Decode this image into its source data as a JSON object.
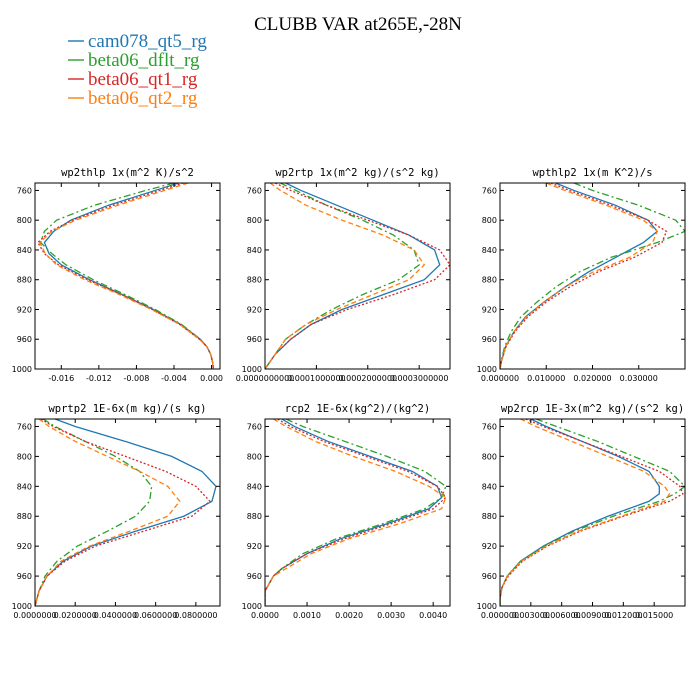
{
  "figure": {
    "title": "CLUBB VAR at265E,-28N"
  },
  "legend": [
    {
      "label": "cam078_qt5_rg",
      "color": "#1f77b4",
      "dash": "solid"
    },
    {
      "label": "beta06_dflt_rg",
      "color": "#2ca02c",
      "dash": "dashdot"
    },
    {
      "label": "beta06_qt1_rg",
      "color": "#d62728",
      "dash": "dotted"
    },
    {
      "label": "beta06_qt2_rg",
      "color": "#ff7f0e",
      "dash": "dashed"
    }
  ],
  "chart_data": [
    {
      "type": "line",
      "title": "wp2thlp  1x(m^2 K)/s^2",
      "ylim": [
        1000,
        750
      ],
      "yticks": [
        760,
        800,
        840,
        880,
        920,
        960,
        1000
      ],
      "xlim": [
        -0.0188,
        0.0009
      ],
      "xticks": [
        -0.016,
        -0.012,
        -0.008,
        -0.004,
        0.0
      ],
      "xticklabels": [
        "-0.016",
        "-0.012",
        "-0.008",
        "-0.004",
        "0.000"
      ],
      "y": [
        750,
        760,
        780,
        800,
        815,
        830,
        845,
        860,
        880,
        900,
        920,
        940,
        960,
        970,
        980,
        990,
        1000
      ],
      "series": [
        {
          "name": "cam078_qt5_rg",
          "values": [
            -0.0035,
            -0.006,
            -0.011,
            -0.015,
            -0.0168,
            -0.0178,
            -0.0173,
            -0.016,
            -0.013,
            -0.0095,
            -0.0062,
            -0.0033,
            -0.0012,
            -0.0005,
            -0.0001,
            0.0001,
            0.0002
          ]
        },
        {
          "name": "beta06_dflt_rg",
          "values": [
            -0.004,
            -0.007,
            -0.0125,
            -0.0165,
            -0.0178,
            -0.0182,
            -0.017,
            -0.0155,
            -0.0126,
            -0.0092,
            -0.006,
            -0.0032,
            -0.0012,
            -0.0005,
            -0.0001,
            0.0001,
            0.0002
          ]
        },
        {
          "name": "beta06_qt1_rg",
          "values": [
            -0.003,
            -0.0055,
            -0.0105,
            -0.0148,
            -0.0172,
            -0.0185,
            -0.0178,
            -0.0163,
            -0.0132,
            -0.0096,
            -0.0063,
            -0.0034,
            -0.0013,
            -0.0005,
            -0.0001,
            0.0001,
            0.0002
          ]
        },
        {
          "name": "beta06_qt2_rg",
          "values": [
            -0.0025,
            -0.005,
            -0.01,
            -0.0145,
            -0.017,
            -0.0183,
            -0.0177,
            -0.0165,
            -0.0135,
            -0.0098,
            -0.0064,
            -0.0034,
            -0.0013,
            -0.0005,
            -0.0001,
            0.0001,
            0.0002
          ]
        }
      ]
    },
    {
      "type": "line",
      "title": "wp2rtp  1x(m^2 kg)/(s^2 kg)",
      "ylim": [
        1000,
        750
      ],
      "yticks": [
        760,
        800,
        840,
        880,
        920,
        960,
        1000
      ],
      "xlim": [
        0.0,
        0.00036
      ],
      "xticks": [
        0.0,
        0.0001,
        0.0002,
        0.0003
      ],
      "xticklabels": [
        "0.0000000000",
        "0.0001000000",
        "0.0002000000",
        "0.0003000000"
      ],
      "y": [
        750,
        760,
        780,
        800,
        820,
        840,
        860,
        880,
        900,
        920,
        940,
        960,
        980,
        1000
      ],
      "series": [
        {
          "name": "cam078_qt5_rg",
          "values": [
            4e-05,
            7e-05,
            0.00014,
            0.00021,
            0.00028,
            0.00033,
            0.00034,
            0.00031,
            0.00023,
            0.00015,
            9e-05,
            5e-05,
            2e-05,
            0.0
          ]
        },
        {
          "name": "beta06_dflt_rg",
          "values": [
            3e-05,
            6e-05,
            0.00012,
            0.00019,
            0.00025,
            0.00029,
            0.0003,
            0.00026,
            0.00019,
            0.00013,
            8e-05,
            4e-05,
            2e-05,
            0.0
          ]
        },
        {
          "name": "beta06_qt1_rg",
          "values": [
            2e-05,
            5e-05,
            0.00012,
            0.0002,
            0.00028,
            0.00034,
            0.00036,
            0.00033,
            0.00025,
            0.00016,
            9e-05,
            5e-05,
            2e-05,
            0.0
          ]
        },
        {
          "name": "beta06_qt2_rg",
          "values": [
            1e-05,
            3e-05,
            8e-05,
            0.00015,
            0.00023,
            0.00029,
            0.00031,
            0.00028,
            0.00021,
            0.00014,
            8e-05,
            4e-05,
            2e-05,
            0.0
          ]
        }
      ]
    },
    {
      "type": "line",
      "title": "wpthlp2  1x(m K^2)/s",
      "ylim": [
        1000,
        750
      ],
      "yticks": [
        760,
        800,
        840,
        880,
        920,
        960,
        1000
      ],
      "xlim": [
        0.0,
        0.04
      ],
      "xticks": [
        0.0,
        0.01,
        0.02,
        0.03
      ],
      "xticklabels": [
        "0.000000",
        "0.010000",
        "0.020000",
        "0.030000"
      ],
      "y": [
        750,
        760,
        780,
        800,
        815,
        830,
        850,
        870,
        890,
        910,
        930,
        950,
        970,
        990,
        1000
      ],
      "series": [
        {
          "name": "cam078_qt5_rg",
          "values": [
            0.012,
            0.016,
            0.025,
            0.032,
            0.034,
            0.031,
            0.025,
            0.019,
            0.014,
            0.0095,
            0.0055,
            0.003,
            0.0012,
            0.0003,
            0.0
          ]
        },
        {
          "name": "beta06_dflt_rg",
          "values": [
            0.016,
            0.02,
            0.03,
            0.038,
            0.04,
            0.034,
            0.024,
            0.017,
            0.012,
            0.008,
            0.0045,
            0.0024,
            0.001,
            0.0002,
            0.0
          ]
        },
        {
          "name": "beta06_qt1_rg",
          "values": [
            0.011,
            0.015,
            0.024,
            0.032,
            0.036,
            0.035,
            0.029,
            0.021,
            0.015,
            0.01,
            0.006,
            0.0032,
            0.0013,
            0.0003,
            0.0
          ]
        },
        {
          "name": "beta06_qt2_rg",
          "values": [
            0.01,
            0.014,
            0.023,
            0.031,
            0.034,
            0.033,
            0.028,
            0.02,
            0.014,
            0.0095,
            0.0057,
            0.003,
            0.0012,
            0.0003,
            0.0
          ]
        }
      ]
    },
    {
      "type": "line",
      "title": "wprtp2  1E-6x(m kg)/(s kg)",
      "ylim": [
        1000,
        750
      ],
      "yticks": [
        760,
        800,
        840,
        880,
        920,
        960,
        1000
      ],
      "xlim": [
        0.0,
        0.092
      ],
      "xticks": [
        0.0,
        0.02,
        0.04,
        0.06,
        0.08
      ],
      "xticklabels": [
        "0.0000000",
        "0.0200000",
        "0.0400000",
        "0.0600000",
        "0.0800000"
      ],
      "y": [
        750,
        760,
        780,
        800,
        820,
        840,
        860,
        880,
        900,
        920,
        940,
        960,
        980,
        1000
      ],
      "series": [
        {
          "name": "cam078_qt5_rg",
          "values": [
            0.01,
            0.02,
            0.045,
            0.068,
            0.083,
            0.09,
            0.088,
            0.074,
            0.05,
            0.028,
            0.014,
            0.006,
            0.002,
            0.0
          ]
        },
        {
          "name": "beta06_dflt_rg",
          "values": [
            0.004,
            0.01,
            0.025,
            0.04,
            0.052,
            0.058,
            0.057,
            0.05,
            0.036,
            0.021,
            0.011,
            0.005,
            0.002,
            0.0
          ]
        },
        {
          "name": "beta06_qt1_rg",
          "values": [
            0.003,
            0.009,
            0.025,
            0.045,
            0.065,
            0.08,
            0.087,
            0.078,
            0.054,
            0.03,
            0.015,
            0.006,
            0.002,
            0.0
          ]
        },
        {
          "name": "beta06_qt2_rg",
          "values": [
            0.002,
            0.007,
            0.02,
            0.036,
            0.052,
            0.066,
            0.072,
            0.066,
            0.047,
            0.027,
            0.013,
            0.006,
            0.002,
            0.0
          ]
        }
      ]
    },
    {
      "type": "line",
      "title": "rcp2  1E-6x(kg^2)/(kg^2)",
      "ylim": [
        1000,
        750
      ],
      "yticks": [
        760,
        800,
        840,
        880,
        920,
        960,
        1000
      ],
      "xlim": [
        0.0,
        0.0044
      ],
      "xticks": [
        0.0,
        0.001,
        0.002,
        0.003,
        0.004
      ],
      "xticklabels": [
        "0.0000",
        "0.0010",
        "0.0020",
        "0.0030",
        "0.0040"
      ],
      "y": [
        750,
        760,
        780,
        800,
        820,
        840,
        855,
        870,
        890,
        910,
        930,
        950,
        960,
        970,
        980,
        1000
      ],
      "series": [
        {
          "name": "cam078_qt5_rg",
          "values": [
            0.0004,
            0.0007,
            0.0015,
            0.0025,
            0.0035,
            0.0041,
            0.0042,
            0.0039,
            0.0029,
            0.0018,
            0.001,
            0.0004,
            0.0002,
            0.0001,
            0.0,
            0.0
          ]
        },
        {
          "name": "beta06_dflt_rg",
          "values": [
            0.0005,
            0.0009,
            0.0019,
            0.0029,
            0.0038,
            0.0043,
            0.0042,
            0.0038,
            0.0028,
            0.0017,
            0.0009,
            0.0004,
            0.0002,
            0.0001,
            0.0,
            0.0
          ]
        },
        {
          "name": "beta06_qt1_rg",
          "values": [
            0.0003,
            0.0006,
            0.0014,
            0.0024,
            0.0034,
            0.0041,
            0.0043,
            0.004,
            0.003,
            0.0019,
            0.001,
            0.0004,
            0.0002,
            0.0001,
            0.0,
            0.0
          ]
        },
        {
          "name": "beta06_qt2_rg",
          "values": [
            0.0002,
            0.0005,
            0.0012,
            0.0021,
            0.0031,
            0.0039,
            0.0043,
            0.0042,
            0.0032,
            0.002,
            0.0011,
            0.0005,
            0.0002,
            0.0001,
            0.0,
            0.0
          ]
        }
      ]
    },
    {
      "type": "line",
      "title": "wp2rcp  1E-3x(m^2 kg)/(s^2 kg)",
      "ylim": [
        1000,
        750
      ],
      "yticks": [
        760,
        800,
        840,
        880,
        920,
        960,
        1000
      ],
      "xlim": [
        0.0,
        0.018
      ],
      "xticks": [
        0.0,
        0.003,
        0.006,
        0.009,
        0.012,
        0.015
      ],
      "xticklabels": [
        "0.000000",
        "0.003000",
        "0.006000",
        "0.009000",
        "0.012000",
        "0.015000"
      ],
      "y": [
        750,
        760,
        780,
        800,
        820,
        840,
        850,
        860,
        880,
        900,
        920,
        940,
        960,
        975,
        990,
        1000
      ],
      "series": [
        {
          "name": "cam078_qt5_rg",
          "values": [
            0.003,
            0.0045,
            0.008,
            0.0115,
            0.0145,
            0.0155,
            0.0155,
            0.0145,
            0.0105,
            0.007,
            0.0042,
            0.002,
            0.0007,
            0.0002,
            0.0,
            0.0
          ]
        },
        {
          "name": "beta06_dflt_rg",
          "values": [
            0.0035,
            0.0055,
            0.0095,
            0.013,
            0.0165,
            0.018,
            0.017,
            0.0155,
            0.011,
            0.0072,
            0.0043,
            0.002,
            0.0007,
            0.0002,
            0.0,
            0.0
          ]
        },
        {
          "name": "beta06_qt1_rg",
          "values": [
            0.0025,
            0.0042,
            0.008,
            0.0118,
            0.0155,
            0.0175,
            0.0178,
            0.0165,
            0.012,
            0.0078,
            0.0046,
            0.0022,
            0.0008,
            0.0002,
            0.0,
            0.0
          ]
        },
        {
          "name": "beta06_qt2_rg",
          "values": [
            0.002,
            0.0035,
            0.007,
            0.0105,
            0.014,
            0.016,
            0.0165,
            0.016,
            0.0118,
            0.0076,
            0.0045,
            0.0021,
            0.0007,
            0.0002,
            0.0,
            0.0
          ]
        }
      ]
    }
  ]
}
